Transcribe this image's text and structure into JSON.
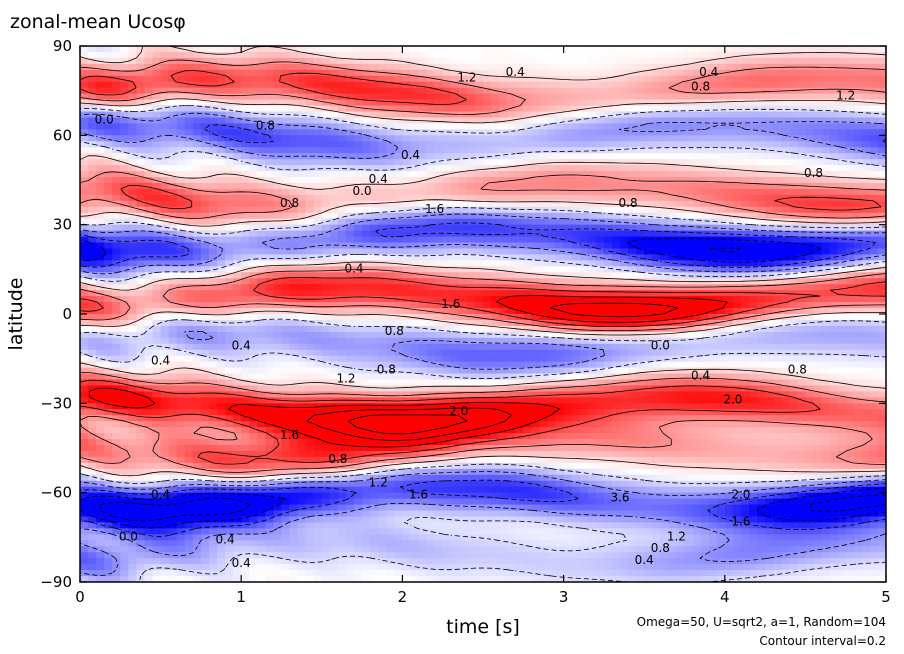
{
  "chart_data": {
    "type": "heatmap",
    "title": "zonal-mean Ucosφ",
    "xlabel": "time [s]",
    "ylabel": "latitude",
    "xlim": [
      0,
      5
    ],
    "ylim": [
      -90,
      90
    ],
    "x_ticks": [
      "0",
      "1",
      "2",
      "3",
      "4",
      "5"
    ],
    "y_ticks": [
      "90",
      "60",
      "30",
      "0",
      "−30",
      "−60",
      "−90"
    ],
    "annotations": [
      "Omega=50, U=sqrt2, a=1, Random=104",
      "Contour interval=0.2"
    ],
    "colormap": {
      "negative": "#0000ff",
      "zero": "#ffffff",
      "positive": "#ff0000"
    },
    "contour_interval": 0.2,
    "bands": [
      {
        "center_lat": 75,
        "amplitude": 1.2,
        "trend": "positive band strengthening toward t=2.5 and t=4.5"
      },
      {
        "center_lat": 60,
        "amplitude": -1.0,
        "trend": "negative band growing after t=1"
      },
      {
        "center_lat": 40,
        "amplitude": 1.0,
        "trend": "positive near t=1 and t=3"
      },
      {
        "center_lat": 25,
        "amplitude": -1.6,
        "trend": "strong negative band"
      },
      {
        "center_lat": 5,
        "amplitude": 1.8,
        "trend": "strong positive equatorial jet"
      },
      {
        "center_lat": -10,
        "amplitude": -0.8,
        "trend": "weak negative"
      },
      {
        "center_lat": -32,
        "amplitude": 2.0,
        "trend": "strong positive band"
      },
      {
        "center_lat": -45,
        "amplitude": 1.0,
        "trend": "positive near t=0.5 and t=1"
      },
      {
        "center_lat": -62,
        "amplitude": -1.8,
        "trend": "strong negative band widening after t=2"
      },
      {
        "center_lat": -80,
        "amplitude": -0.6,
        "trend": "weak negative"
      }
    ],
    "contour_labels": [
      {
        "x": 2.4,
        "y": 78,
        "text": "1.2"
      },
      {
        "x": 2.7,
        "y": 80,
        "text": "0.4"
      },
      {
        "x": 3.9,
        "y": 80,
        "text": "0.4"
      },
      {
        "x": 3.85,
        "y": 75,
        "text": "0.8"
      },
      {
        "x": 4.75,
        "y": 72,
        "text": "1.2"
      },
      {
        "x": 1.15,
        "y": 62,
        "text": "0.8"
      },
      {
        "x": 0.15,
        "y": 64,
        "text": "0.0"
      },
      {
        "x": 2.05,
        "y": 52,
        "text": "0.4"
      },
      {
        "x": 1.75,
        "y": 40,
        "text": "0.0"
      },
      {
        "x": 1.85,
        "y": 44,
        "text": "0.4"
      },
      {
        "x": 4.55,
        "y": 46,
        "text": "0.8"
      },
      {
        "x": 1.3,
        "y": 36,
        "text": "0.8"
      },
      {
        "x": 3.4,
        "y": 36,
        "text": "0.8"
      },
      {
        "x": 2.2,
        "y": 34,
        "text": "1.6"
      },
      {
        "x": 1.7,
        "y": 14,
        "text": "0.4"
      },
      {
        "x": 2.3,
        "y": 2,
        "text": "1.6"
      },
      {
        "x": 3.6,
        "y": -12,
        "text": "0.0"
      },
      {
        "x": 1.95,
        "y": -7,
        "text": "0.8"
      },
      {
        "x": 1.0,
        "y": -12,
        "text": "0.4"
      },
      {
        "x": 0.5,
        "y": -17,
        "text": "0.4"
      },
      {
        "x": 1.9,
        "y": -20,
        "text": "0.8"
      },
      {
        "x": 1.65,
        "y": -23,
        "text": "1.2"
      },
      {
        "x": 3.85,
        "y": -22,
        "text": "0.4"
      },
      {
        "x": 4.45,
        "y": -20,
        "text": "0.8"
      },
      {
        "x": 2.35,
        "y": -34,
        "text": "2.0"
      },
      {
        "x": 4.05,
        "y": -30,
        "text": "2.0"
      },
      {
        "x": 1.3,
        "y": -42,
        "text": "1.6"
      },
      {
        "x": 1.6,
        "y": -50,
        "text": "0.8"
      },
      {
        "x": 1.85,
        "y": -58,
        "text": "1.2"
      },
      {
        "x": 2.1,
        "y": -62,
        "text": "1.6"
      },
      {
        "x": 0.5,
        "y": -62,
        "text": "0.4"
      },
      {
        "x": 3.35,
        "y": -63,
        "text": "3.6"
      },
      {
        "x": 4.1,
        "y": -62,
        "text": "2.0"
      },
      {
        "x": 4.1,
        "y": -71,
        "text": "1.6"
      },
      {
        "x": 3.7,
        "y": -76,
        "text": "1.2"
      },
      {
        "x": 3.6,
        "y": -80,
        "text": "0.8"
      },
      {
        "x": 3.5,
        "y": -84,
        "text": "0.4"
      },
      {
        "x": 0.3,
        "y": -76,
        "text": "0.0"
      },
      {
        "x": 0.9,
        "y": -77,
        "text": "0.4"
      },
      {
        "x": 1.0,
        "y": -85,
        "text": "0.4"
      }
    ]
  }
}
